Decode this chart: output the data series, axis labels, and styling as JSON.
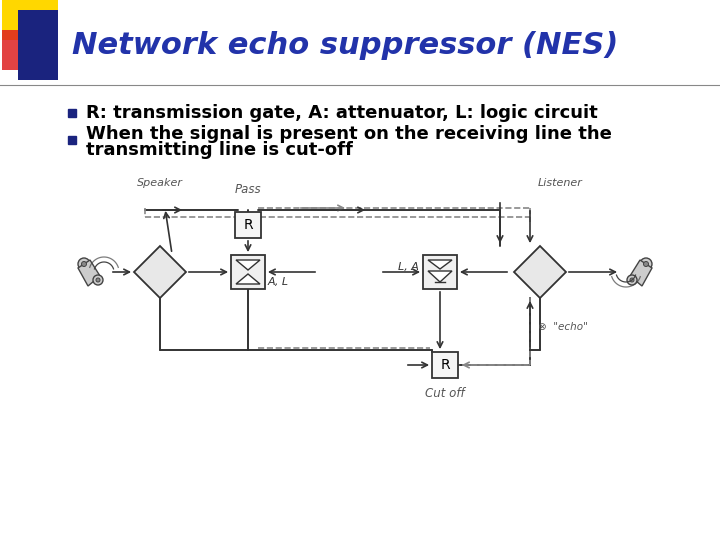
{
  "title": "Network echo suppressor (NES)",
  "title_color": "#2233aa",
  "title_fontsize": 22,
  "bullet1": "R: transmission gate, A: attenuator, L: logic circuit",
  "bullet2_line1": "When the signal is present on the receiving line the",
  "bullet2_line2": "transmitting line is cut-off",
  "bullet_fontsize": 13,
  "bullet_color": "#000000",
  "bullet_marker_color": "#1a237e",
  "bg_color": "#ffffff",
  "accent_yellow": "#FFD700",
  "accent_red": "#dd2222",
  "accent_blue": "#1a237e",
  "line_color": "#444444",
  "dash_color": "#888888",
  "diagram_line_color": "#333333"
}
